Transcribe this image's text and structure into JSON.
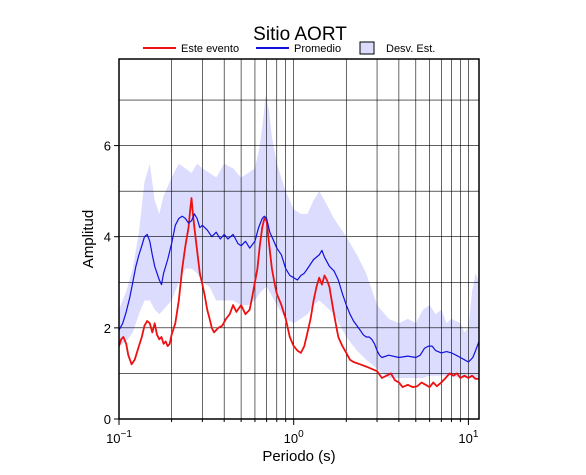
{
  "chart_data": {
    "type": "line",
    "title": "Sitio AORT",
    "xlabel": "Periodo (s)",
    "ylabel": "Amplitud",
    "x_scale": "log",
    "xlim": [
      0.1,
      11.5
    ],
    "ylim": [
      0,
      7.9
    ],
    "x_ticks": [
      {
        "value": 0.1,
        "base": "10",
        "exp": "−1"
      },
      {
        "value": 1,
        "base": "10",
        "exp": "0"
      },
      {
        "value": 10,
        "base": "10",
        "exp": "1"
      }
    ],
    "y_ticks": [
      0,
      2,
      4,
      6
    ],
    "grid": true,
    "legend": {
      "placement": "top",
      "entries": [
        {
          "label": "Este evento",
          "color": "#ee1111",
          "kind": "line"
        },
        {
          "label": "Promedio",
          "color": "#1111dd",
          "kind": "line"
        },
        {
          "label": "Desv. Est.",
          "color": "#dcdcff",
          "kind": "box"
        }
      ]
    },
    "series": [
      {
        "name": "Este evento",
        "color": "#ee1111",
        "points": [
          [
            0.1,
            1.6
          ],
          [
            0.103,
            1.75
          ],
          [
            0.106,
            1.8
          ],
          [
            0.11,
            1.65
          ],
          [
            0.113,
            1.4
          ],
          [
            0.118,
            1.2
          ],
          [
            0.123,
            1.3
          ],
          [
            0.13,
            1.6
          ],
          [
            0.135,
            1.8
          ],
          [
            0.14,
            2.05
          ],
          [
            0.145,
            2.15
          ],
          [
            0.15,
            2.1
          ],
          [
            0.155,
            1.9
          ],
          [
            0.16,
            2.1
          ],
          [
            0.165,
            1.85
          ],
          [
            0.17,
            1.75
          ],
          [
            0.175,
            1.8
          ],
          [
            0.18,
            1.65
          ],
          [
            0.185,
            1.7
          ],
          [
            0.19,
            1.6
          ],
          [
            0.195,
            1.65
          ],
          [
            0.2,
            1.85
          ],
          [
            0.21,
            2.1
          ],
          [
            0.22,
            2.6
          ],
          [
            0.23,
            3.3
          ],
          [
            0.24,
            3.8
          ],
          [
            0.25,
            4.2
          ],
          [
            0.255,
            4.55
          ],
          [
            0.26,
            4.85
          ],
          [
            0.265,
            4.5
          ],
          [
            0.27,
            4.2
          ],
          [
            0.28,
            3.7
          ],
          [
            0.29,
            3.2
          ],
          [
            0.3,
            2.95
          ],
          [
            0.31,
            2.7
          ],
          [
            0.32,
            2.4
          ],
          [
            0.33,
            2.2
          ],
          [
            0.34,
            2.0
          ],
          [
            0.35,
            1.9
          ],
          [
            0.37,
            2.0
          ],
          [
            0.39,
            2.05
          ],
          [
            0.41,
            2.2
          ],
          [
            0.43,
            2.3
          ],
          [
            0.45,
            2.5
          ],
          [
            0.47,
            2.35
          ],
          [
            0.5,
            2.5
          ],
          [
            0.53,
            2.3
          ],
          [
            0.56,
            2.4
          ],
          [
            0.58,
            2.7
          ],
          [
            0.6,
            3.0
          ],
          [
            0.62,
            3.3
          ],
          [
            0.64,
            3.8
          ],
          [
            0.66,
            4.2
          ],
          [
            0.68,
            4.4
          ],
          [
            0.7,
            4.35
          ],
          [
            0.72,
            3.9
          ],
          [
            0.75,
            3.3
          ],
          [
            0.78,
            2.95
          ],
          [
            0.8,
            2.75
          ],
          [
            0.85,
            2.5
          ],
          [
            0.9,
            2.2
          ],
          [
            0.95,
            1.8
          ],
          [
            1.0,
            1.6
          ],
          [
            1.05,
            1.5
          ],
          [
            1.1,
            1.45
          ],
          [
            1.15,
            1.6
          ],
          [
            1.2,
            1.9
          ],
          [
            1.25,
            2.2
          ],
          [
            1.3,
            2.6
          ],
          [
            1.35,
            2.9
          ],
          [
            1.4,
            3.1
          ],
          [
            1.45,
            2.95
          ],
          [
            1.5,
            3.15
          ],
          [
            1.55,
            3.05
          ],
          [
            1.6,
            2.9
          ],
          [
            1.65,
            2.6
          ],
          [
            1.7,
            2.3
          ],
          [
            1.8,
            1.8
          ],
          [
            1.9,
            1.6
          ],
          [
            2.0,
            1.45
          ],
          [
            2.1,
            1.3
          ],
          [
            2.2,
            1.25
          ],
          [
            2.4,
            1.2
          ],
          [
            2.6,
            1.15
          ],
          [
            2.8,
            1.1
          ],
          [
            3.0,
            1.05
          ],
          [
            3.2,
            0.9
          ],
          [
            3.4,
            0.95
          ],
          [
            3.6,
            1.0
          ],
          [
            3.8,
            0.85
          ],
          [
            4.0,
            0.8
          ],
          [
            4.2,
            0.7
          ],
          [
            4.5,
            0.75
          ],
          [
            4.8,
            0.7
          ],
          [
            5.1,
            0.72
          ],
          [
            5.4,
            0.8
          ],
          [
            5.7,
            0.75
          ],
          [
            6.0,
            0.7
          ],
          [
            6.3,
            0.8
          ],
          [
            6.6,
            0.72
          ],
          [
            7.0,
            0.8
          ],
          [
            7.4,
            0.9
          ],
          [
            7.8,
            1.0
          ],
          [
            8.2,
            0.95
          ],
          [
            8.6,
            1.0
          ],
          [
            9.0,
            0.9
          ],
          [
            9.5,
            0.95
          ],
          [
            10.0,
            0.9
          ],
          [
            10.5,
            0.95
          ],
          [
            11.0,
            0.88
          ],
          [
            11.5,
            0.88
          ]
        ]
      },
      {
        "name": "Promedio",
        "color": "#1111dd",
        "points": [
          [
            0.1,
            1.95
          ],
          [
            0.105,
            2.1
          ],
          [
            0.11,
            2.35
          ],
          [
            0.115,
            2.65
          ],
          [
            0.12,
            3.0
          ],
          [
            0.125,
            3.35
          ],
          [
            0.13,
            3.6
          ],
          [
            0.135,
            3.8
          ],
          [
            0.14,
            4.0
          ],
          [
            0.145,
            4.05
          ],
          [
            0.15,
            3.9
          ],
          [
            0.155,
            3.6
          ],
          [
            0.16,
            3.35
          ],
          [
            0.165,
            3.2
          ],
          [
            0.17,
            3.05
          ],
          [
            0.175,
            2.95
          ],
          [
            0.18,
            3.2
          ],
          [
            0.19,
            3.5
          ],
          [
            0.2,
            3.85
          ],
          [
            0.21,
            4.25
          ],
          [
            0.22,
            4.4
          ],
          [
            0.23,
            4.45
          ],
          [
            0.24,
            4.4
          ],
          [
            0.25,
            4.3
          ],
          [
            0.26,
            4.35
          ],
          [
            0.27,
            4.5
          ],
          [
            0.28,
            4.4
          ],
          [
            0.29,
            4.2
          ],
          [
            0.3,
            4.25
          ],
          [
            0.32,
            4.15
          ],
          [
            0.34,
            4.0
          ],
          [
            0.36,
            4.1
          ],
          [
            0.38,
            3.95
          ],
          [
            0.4,
            4.05
          ],
          [
            0.42,
            3.95
          ],
          [
            0.45,
            4.05
          ],
          [
            0.48,
            3.85
          ],
          [
            0.5,
            3.8
          ],
          [
            0.53,
            3.9
          ],
          [
            0.56,
            3.75
          ],
          [
            0.6,
            3.9
          ],
          [
            0.63,
            4.2
          ],
          [
            0.66,
            4.4
          ],
          [
            0.68,
            4.45
          ],
          [
            0.7,
            4.4
          ],
          [
            0.73,
            4.1
          ],
          [
            0.76,
            3.95
          ],
          [
            0.8,
            3.75
          ],
          [
            0.85,
            3.6
          ],
          [
            0.9,
            3.3
          ],
          [
            0.95,
            3.15
          ],
          [
            1.0,
            3.1
          ],
          [
            1.05,
            3.05
          ],
          [
            1.1,
            3.15
          ],
          [
            1.15,
            3.2
          ],
          [
            1.2,
            3.3
          ],
          [
            1.3,
            3.5
          ],
          [
            1.4,
            3.6
          ],
          [
            1.45,
            3.7
          ],
          [
            1.5,
            3.55
          ],
          [
            1.6,
            3.35
          ],
          [
            1.7,
            3.25
          ],
          [
            1.8,
            3.05
          ],
          [
            1.9,
            2.75
          ],
          [
            2.0,
            2.5
          ],
          [
            2.1,
            2.3
          ],
          [
            2.2,
            2.15
          ],
          [
            2.3,
            2.05
          ],
          [
            2.4,
            1.95
          ],
          [
            2.5,
            1.85
          ],
          [
            2.6,
            1.8
          ],
          [
            2.7,
            1.8
          ],
          [
            2.8,
            1.75
          ],
          [
            2.9,
            1.65
          ],
          [
            3.0,
            1.5
          ],
          [
            3.1,
            1.4
          ],
          [
            3.2,
            1.35
          ],
          [
            3.5,
            1.4
          ],
          [
            4.0,
            1.35
          ],
          [
            4.5,
            1.38
          ],
          [
            5.0,
            1.35
          ],
          [
            5.3,
            1.4
          ],
          [
            5.6,
            1.55
          ],
          [
            5.9,
            1.6
          ],
          [
            6.2,
            1.6
          ],
          [
            6.5,
            1.5
          ],
          [
            7.0,
            1.45
          ],
          [
            7.5,
            1.48
          ],
          [
            8.0,
            1.45
          ],
          [
            8.5,
            1.4
          ],
          [
            9.0,
            1.35
          ],
          [
            9.5,
            1.3
          ],
          [
            10.0,
            1.25
          ],
          [
            10.3,
            1.3
          ],
          [
            10.6,
            1.35
          ],
          [
            11.0,
            1.5
          ],
          [
            11.5,
            1.7
          ]
        ]
      }
    ],
    "band": {
      "name": "Desv. Est.",
      "color": "#dcdcff",
      "upper": [
        [
          0.1,
          2.4
        ],
        [
          0.11,
          2.8
        ],
        [
          0.12,
          3.3
        ],
        [
          0.13,
          4.1
        ],
        [
          0.14,
          5.2
        ],
        [
          0.15,
          5.6
        ],
        [
          0.16,
          4.8
        ],
        [
          0.17,
          4.5
        ],
        [
          0.18,
          4.9
        ],
        [
          0.2,
          5.3
        ],
        [
          0.22,
          5.6
        ],
        [
          0.24,
          5.5
        ],
        [
          0.26,
          5.4
        ],
        [
          0.28,
          5.6
        ],
        [
          0.3,
          5.5
        ],
        [
          0.33,
          5.4
        ],
        [
          0.36,
          5.3
        ],
        [
          0.4,
          5.6
        ],
        [
          0.45,
          5.5
        ],
        [
          0.5,
          5.3
        ],
        [
          0.55,
          5.4
        ],
        [
          0.6,
          5.5
        ],
        [
          0.64,
          6.0
        ],
        [
          0.67,
          6.6
        ],
        [
          0.69,
          7.1
        ],
        [
          0.72,
          6.8
        ],
        [
          0.75,
          6.2
        ],
        [
          0.8,
          5.6
        ],
        [
          0.9,
          5.0
        ],
        [
          1.0,
          4.6
        ],
        [
          1.1,
          4.5
        ],
        [
          1.2,
          4.5
        ],
        [
          1.3,
          4.8
        ],
        [
          1.4,
          5.0
        ],
        [
          1.5,
          4.8
        ],
        [
          1.7,
          4.4
        ],
        [
          2.0,
          4.0
        ],
        [
          2.3,
          3.6
        ],
        [
          2.6,
          3.2
        ],
        [
          3.0,
          2.5
        ],
        [
          3.5,
          2.2
        ],
        [
          4.0,
          2.1
        ],
        [
          4.5,
          2.2
        ],
        [
          5.0,
          2.1
        ],
        [
          5.5,
          2.4
        ],
        [
          6.0,
          2.5
        ],
        [
          6.5,
          2.3
        ],
        [
          7.0,
          2.4
        ],
        [
          7.5,
          2.1
        ],
        [
          8.0,
          2.2
        ],
        [
          9.0,
          2.1
        ],
        [
          9.5,
          1.9
        ],
        [
          10.0,
          2.0
        ],
        [
          10.5,
          2.8
        ],
        [
          11.0,
          3.2
        ],
        [
          11.5,
          3.0
        ]
      ],
      "lower": [
        [
          0.1,
          1.6
        ],
        [
          0.11,
          1.7
        ],
        [
          0.12,
          1.9
        ],
        [
          0.13,
          2.3
        ],
        [
          0.14,
          2.6
        ],
        [
          0.15,
          2.6
        ],
        [
          0.16,
          2.4
        ],
        [
          0.17,
          2.3
        ],
        [
          0.18,
          2.4
        ],
        [
          0.2,
          2.6
        ],
        [
          0.22,
          3.0
        ],
        [
          0.24,
          3.3
        ],
        [
          0.26,
          3.3
        ],
        [
          0.28,
          3.2
        ],
        [
          0.3,
          3.0
        ],
        [
          0.33,
          2.9
        ],
        [
          0.36,
          2.6
        ],
        [
          0.4,
          2.6
        ],
        [
          0.45,
          2.6
        ],
        [
          0.5,
          2.5
        ],
        [
          0.55,
          2.5
        ],
        [
          0.6,
          2.6
        ],
        [
          0.65,
          2.8
        ],
        [
          0.7,
          2.9
        ],
        [
          0.75,
          2.7
        ],
        [
          0.8,
          2.5
        ],
        [
          0.9,
          2.2
        ],
        [
          1.0,
          2.1
        ],
        [
          1.1,
          2.2
        ],
        [
          1.2,
          2.3
        ],
        [
          1.3,
          2.5
        ],
        [
          1.4,
          2.6
        ],
        [
          1.5,
          2.5
        ],
        [
          1.7,
          2.3
        ],
        [
          2.0,
          1.8
        ],
        [
          2.3,
          1.5
        ],
        [
          2.6,
          1.3
        ],
        [
          3.0,
          1.1
        ],
        [
          3.5,
          0.9
        ],
        [
          4.0,
          0.9
        ],
        [
          4.5,
          0.9
        ],
        [
          5.0,
          0.9
        ],
        [
          5.5,
          0.9
        ],
        [
          6.0,
          0.95
        ],
        [
          7.0,
          0.95
        ],
        [
          8.0,
          0.95
        ],
        [
          9.0,
          0.9
        ],
        [
          10.0,
          0.9
        ],
        [
          11.0,
          0.9
        ],
        [
          11.5,
          0.9
        ]
      ]
    }
  }
}
